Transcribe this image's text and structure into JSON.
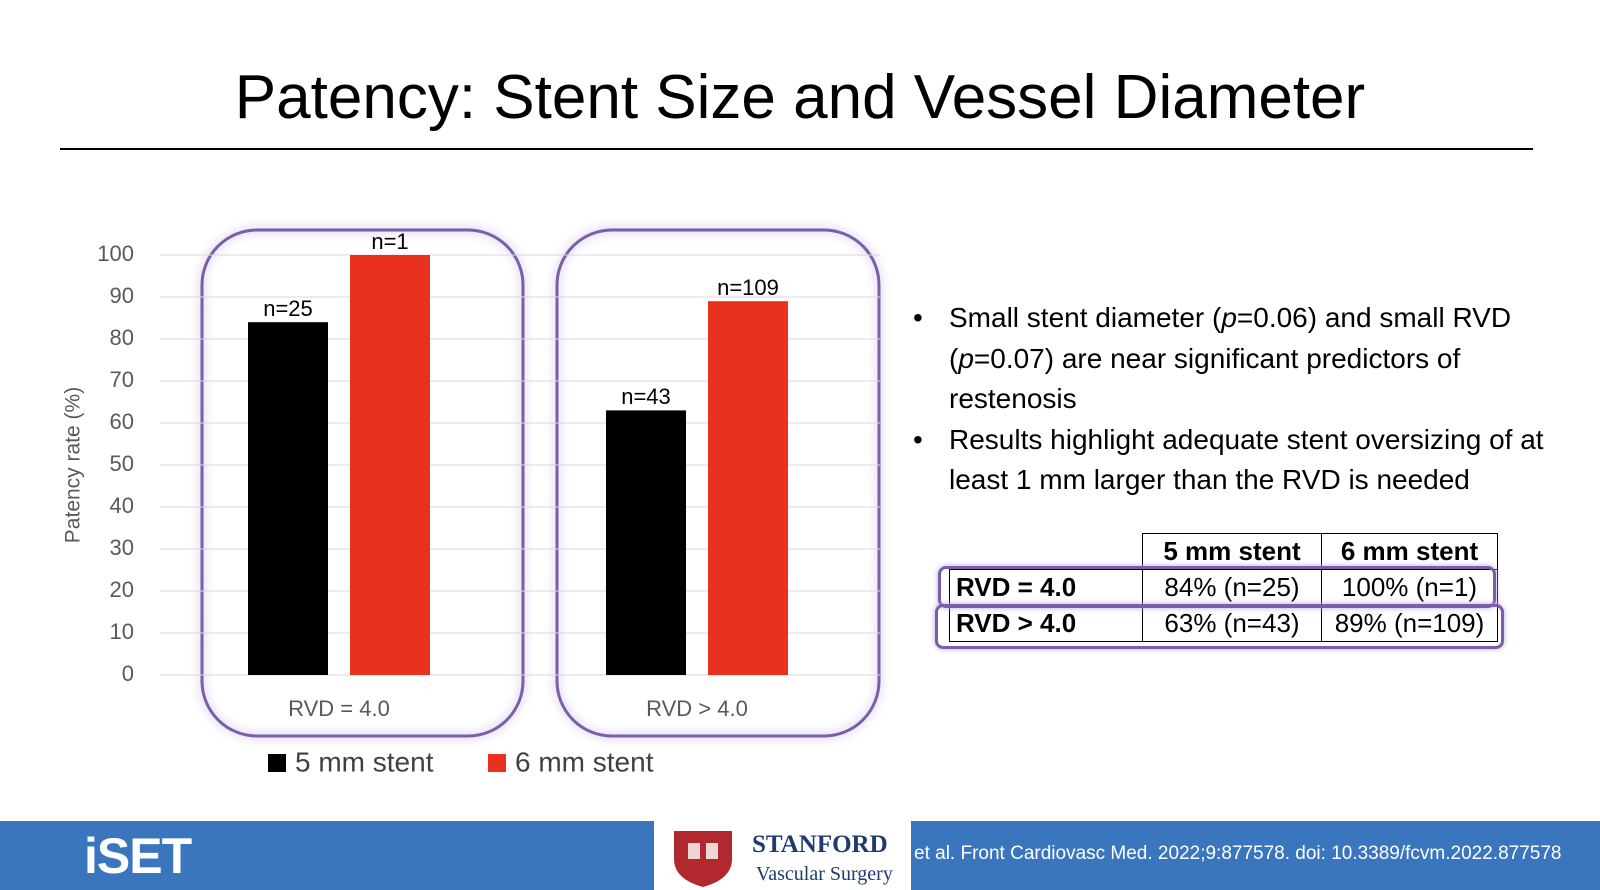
{
  "title": "Patency: Stent Size and Vessel Diameter",
  "chart_data": {
    "type": "bar",
    "ylabel": "Patency rate (%)",
    "categories": [
      "RVD = 4.0",
      "RVD > 4.0"
    ],
    "series": [
      {
        "name": "5 mm stent",
        "color": "#000000",
        "values": [
          84,
          63
        ],
        "annotations": [
          "n=25",
          "n=43"
        ]
      },
      {
        "name": "6 mm stent",
        "color": "#e8321f",
        "values": [
          100,
          89
        ],
        "annotations": [
          "n=1",
          "n=109"
        ]
      }
    ],
    "ylim": [
      0,
      100
    ],
    "yticks": [
      0,
      10,
      20,
      30,
      40,
      50,
      60,
      70,
      80,
      90,
      100
    ],
    "grid": true,
    "legend": "bottom"
  },
  "bullets": [
    [
      "Small stent diameter (",
      "p",
      "=0.06) and small RVD (",
      "p",
      "=0.07) are near significant predictors of restenosis"
    ],
    [
      "Results highlight adequate stent oversizing of at least 1 mm larger than the RVD is needed"
    ]
  ],
  "table": {
    "header": [
      "",
      "5 mm stent",
      "6 mm stent"
    ],
    "rows": [
      [
        "RVD = 4.0",
        "84% (n=25)",
        "100% (n=1)"
      ],
      [
        "RVD > 4.0",
        "63% (n=43)",
        "89% (n=109)"
      ]
    ]
  },
  "footer": {
    "logo": "iSET",
    "stanford": "STANFORD",
    "department": "Vascular Surgery",
    "citation": "et al. Front Cardiovasc Med. 2022;9:877578. doi: 10.3389/fcvm.2022.877578"
  }
}
